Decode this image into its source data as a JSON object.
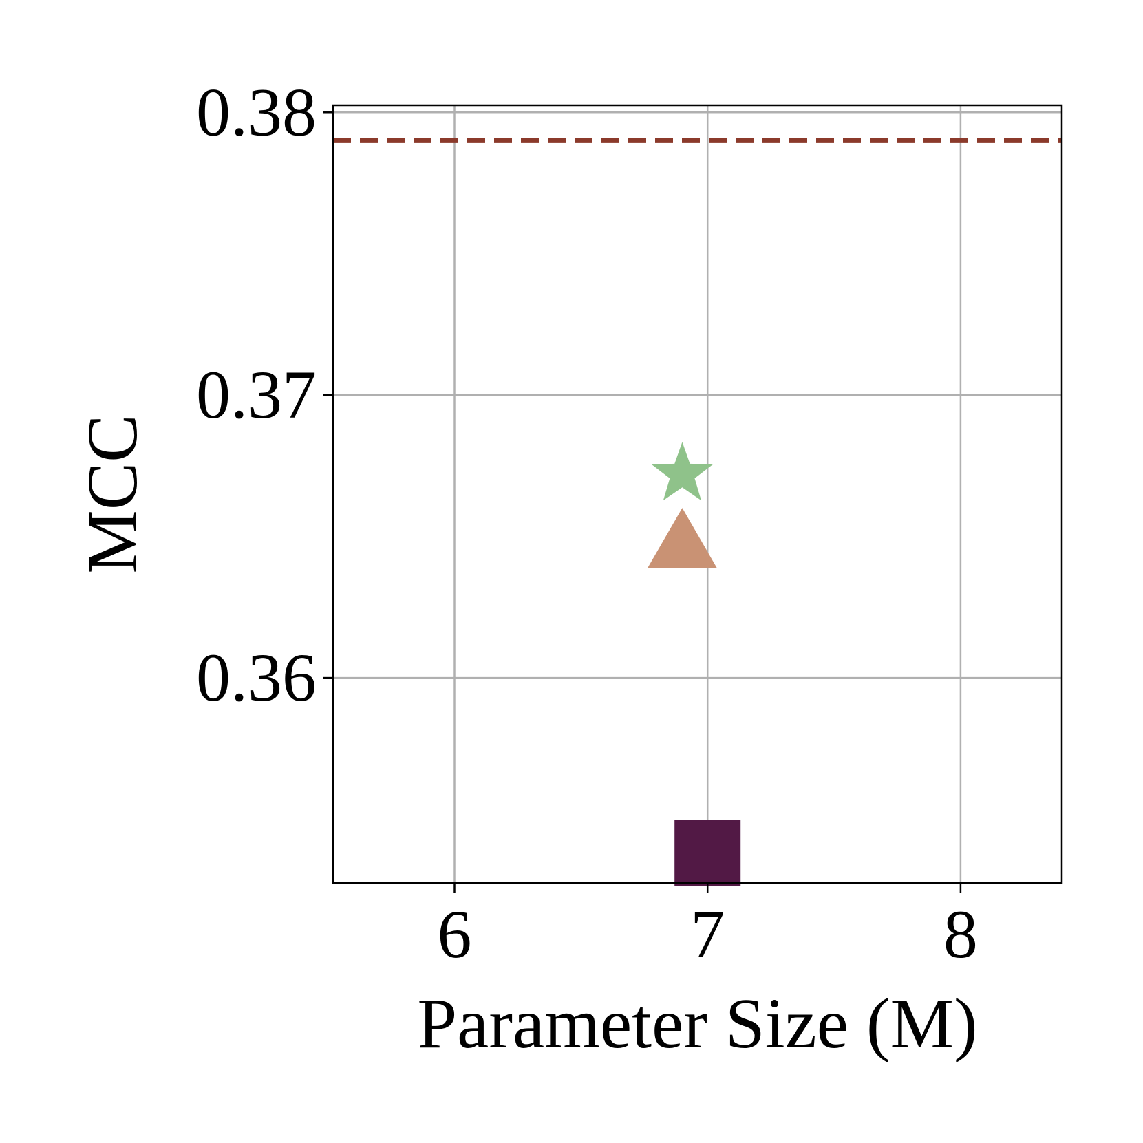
{
  "chart_data": {
    "type": "scatter",
    "xlabel": "Parameter Size (M)",
    "ylabel": "MCC",
    "xlim": [
      5.52,
      8.4
    ],
    "ylim": [
      0.35275,
      0.38025
    ],
    "x_ticks": [
      6,
      7,
      8
    ],
    "x_tick_labels": [
      "6",
      "7",
      "8"
    ],
    "y_ticks": [
      0.36,
      0.37,
      0.38
    ],
    "y_tick_labels": [
      "0.36",
      "0.37",
      "0.38"
    ],
    "grid": true,
    "legend": "none",
    "reference_line": {
      "y": 0.379,
      "style": "dashed",
      "color": "#8B3A2B"
    },
    "points": [
      {
        "x": 6.9,
        "y": 0.3672,
        "marker": "star",
        "color": "#8FC28A"
      },
      {
        "x": 6.9,
        "y": 0.3646,
        "marker": "triangle",
        "color": "#C99274"
      },
      {
        "x": 7.0,
        "y": 0.3538,
        "marker": "square",
        "color": "#521945"
      }
    ]
  }
}
